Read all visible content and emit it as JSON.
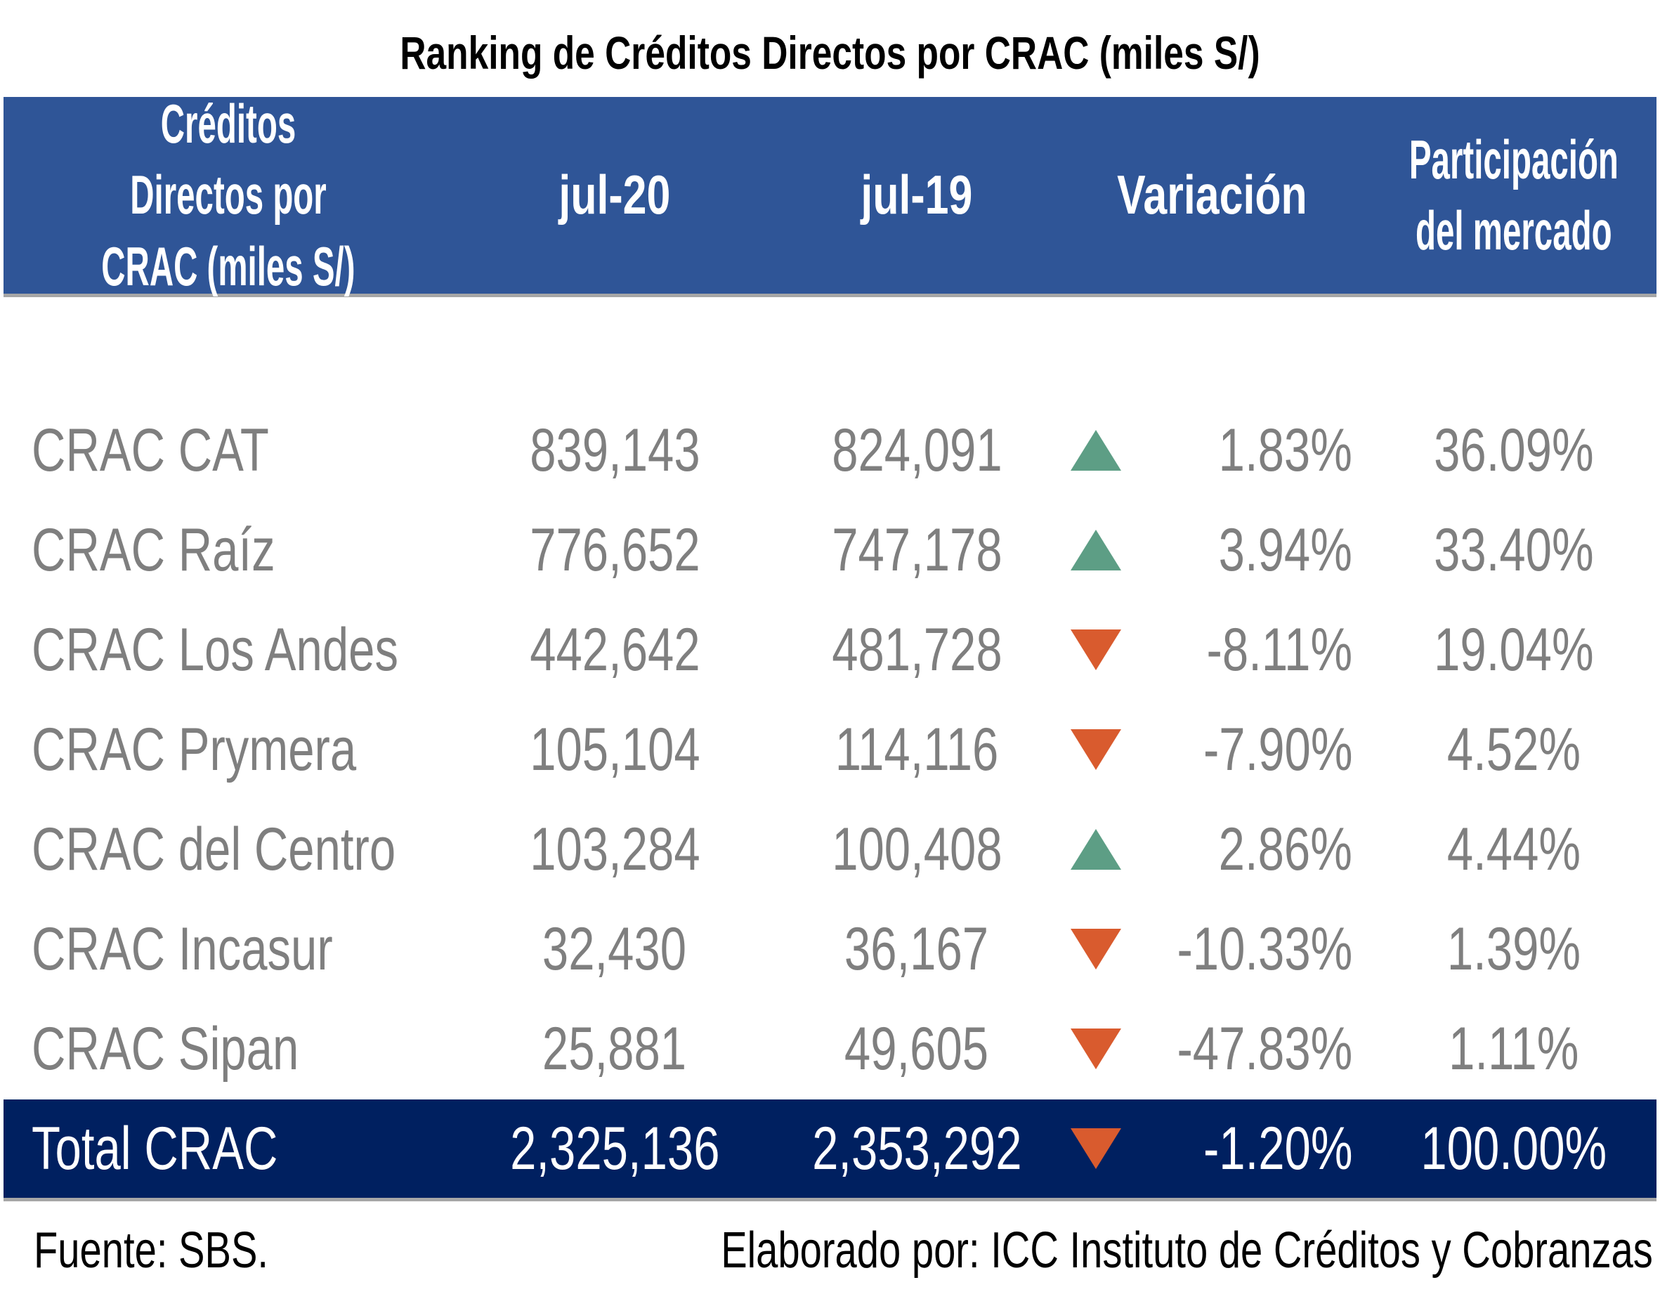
{
  "title": "Ranking de Créditos Directos por CRAC (miles S/)",
  "header": {
    "col_name_line1": "Créditos Directos por",
    "col_name_line2": "CRAC (miles S/)",
    "col_jul20": "jul-20",
    "col_jul19": "jul-19",
    "col_variation": "Variación",
    "col_share_line1": "Participación",
    "col_share_line2": "del mercado"
  },
  "rows": [
    {
      "name": "CRAC CAT",
      "jul20": "839,143",
      "jul19": "824,091",
      "trend": "up",
      "variation": "1.83%",
      "share": "36.09%"
    },
    {
      "name": "CRAC Raíz",
      "jul20": "776,652",
      "jul19": "747,178",
      "trend": "up",
      "variation": "3.94%",
      "share": "33.40%"
    },
    {
      "name": "CRAC Los Andes",
      "jul20": "442,642",
      "jul19": "481,728",
      "trend": "down",
      "variation": "-8.11%",
      "share": "19.04%"
    },
    {
      "name": "CRAC Prymera",
      "jul20": "105,104",
      "jul19": "114,116",
      "trend": "down",
      "variation": "-7.90%",
      "share": "4.52%"
    },
    {
      "name": "CRAC del Centro",
      "jul20": "103,284",
      "jul19": "100,408",
      "trend": "up",
      "variation": "2.86%",
      "share": "4.44%"
    },
    {
      "name": "CRAC Incasur",
      "jul20": "32,430",
      "jul19": "36,167",
      "trend": "down",
      "variation": "-10.33%",
      "share": "1.39%"
    },
    {
      "name": "CRAC Sipan",
      "jul20": "25,881",
      "jul19": "49,605",
      "trend": "down",
      "variation": "-47.83%",
      "share": "1.11%"
    }
  ],
  "total": {
    "name": "Total CRAC",
    "jul20": "2,325,136",
    "jul19": "2,353,292",
    "trend": "down",
    "variation": "-1.20%",
    "share": "100.00%"
  },
  "footer": {
    "source": "Fuente: SBS.",
    "credit": "Elaborado por: ICC Instituto de Créditos y Cobranzas"
  },
  "colors": {
    "header_bg": "#2f5597",
    "total_bg": "#002060",
    "up": "#5d9e85",
    "down": "#d95b2e",
    "row_text": "#7f7f7f"
  }
}
